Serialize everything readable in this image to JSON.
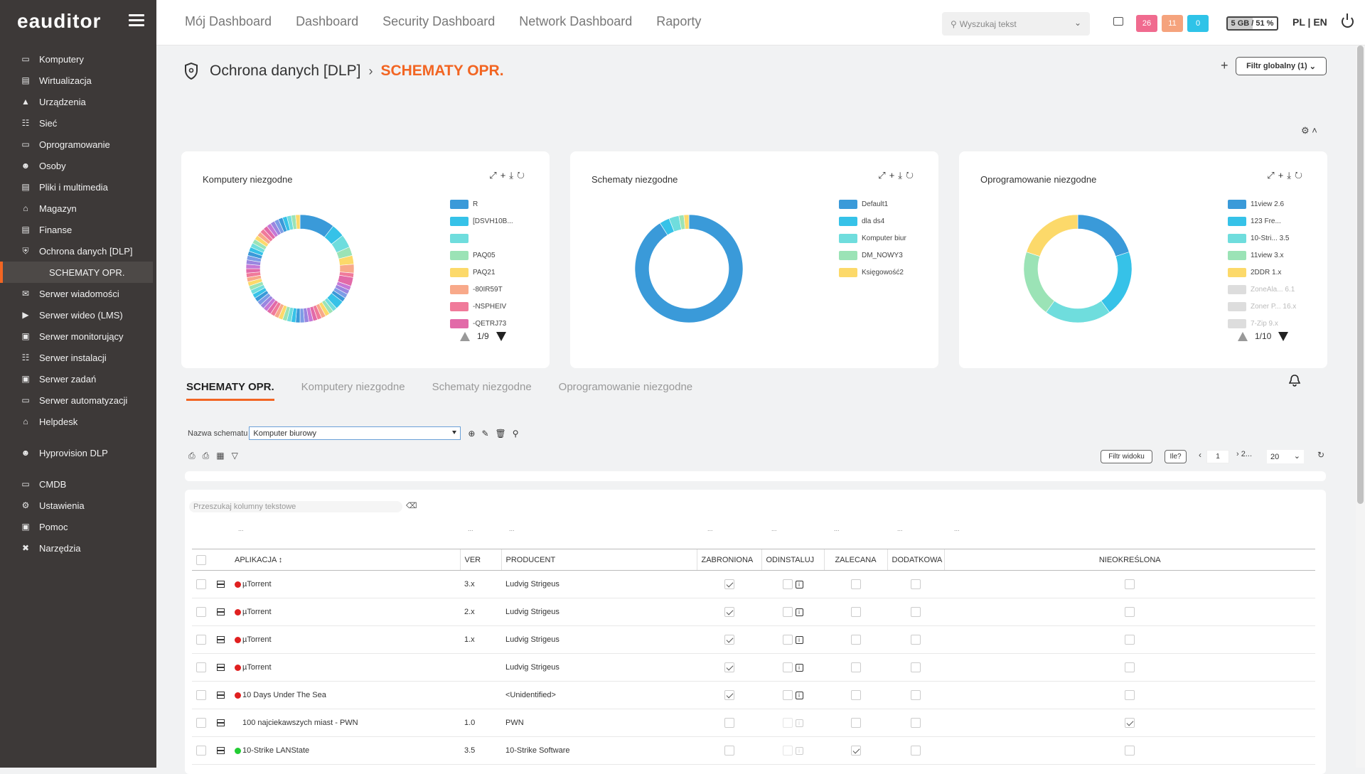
{
  "app": {
    "logo": "eauditor"
  },
  "sidebar": {
    "items": [
      {
        "label": "Komputery",
        "icon": "monitor-icon"
      },
      {
        "label": "Wirtualizacja",
        "icon": "server-stack-icon"
      },
      {
        "label": "Urządzenia",
        "icon": "devices-icon"
      },
      {
        "label": "Sieć",
        "icon": "network-icon"
      },
      {
        "label": "Oprogramowanie",
        "icon": "monitor-icon"
      },
      {
        "label": "Osoby",
        "icon": "people-icon"
      },
      {
        "label": "Pliki i multimedia",
        "icon": "files-icon"
      },
      {
        "label": "Magazyn",
        "icon": "warehouse-icon"
      },
      {
        "label": "Finanse",
        "icon": "finance-icon"
      },
      {
        "label": "Ochrona danych [DLP]",
        "icon": "shield-icon"
      },
      {
        "label": "SCHEMATY OPR.",
        "icon": ""
      },
      {
        "label": "Serwer wiadomości",
        "icon": "mail-icon"
      },
      {
        "label": "Serwer wideo (LMS)",
        "icon": "video-icon"
      },
      {
        "label": "Serwer monitorujący",
        "icon": "monitoring-icon"
      },
      {
        "label": "Serwer instalacji",
        "icon": "network-icon"
      },
      {
        "label": "Serwer zadań",
        "icon": "clipboard-icon"
      },
      {
        "label": "Serwer automatyzacji",
        "icon": "monitor-icon"
      },
      {
        "label": "Helpdesk",
        "icon": "helpdesk-icon"
      },
      {
        "label": "Hyprovision DLP",
        "icon": "user-key-icon"
      },
      {
        "label": "CMDB",
        "icon": "monitor-icon"
      },
      {
        "label": "Ustawienia",
        "icon": "gear-icon"
      },
      {
        "label": "Pomoc",
        "icon": "help-icon"
      },
      {
        "label": "Narzędzia",
        "icon": "tools-icon"
      }
    ]
  },
  "topnav": {
    "items": [
      "Mój Dashboard",
      "Dashboard",
      "Security Dashboard",
      "Network Dashboard",
      "Raporty"
    ]
  },
  "search": {
    "placeholder": "Wyszukaj tekst"
  },
  "badges": [
    {
      "value": "26",
      "color": "#f06b8f"
    },
    {
      "value": "11",
      "color": "#f5a37d"
    },
    {
      "value": "0",
      "color": "#2fc3e8"
    }
  ],
  "memory": {
    "label": "5 GB / 51 %",
    "fraction": 0.51
  },
  "lang": "PL | EN",
  "page": {
    "section": "Ochrona danych [DLP]",
    "current": "SCHEMATY OPR.",
    "filter_global": "Filtr globalny (1)"
  },
  "cards": [
    {
      "title": "Komputery niezgodne",
      "legend": [
        {
          "label": "R",
          "color": "#3a9ad9"
        },
        {
          "label": "[DSVH10B...",
          "color": "#36c2e8"
        },
        {
          "label": "",
          "color": "#6fdddd"
        },
        {
          "label": "PAQ05",
          "color": "#9be3b6"
        },
        {
          "label": "PAQ21",
          "color": "#fcd96a"
        },
        {
          "label": "-80IR59T",
          "color": "#f8a98a"
        },
        {
          "label": "-NSPHEIV",
          "color": "#f07a9a"
        },
        {
          "label": "-QETRJ73",
          "color": "#e26aa8"
        }
      ],
      "pager": "1/9",
      "chart_data": {
        "type": "pie",
        "values": [
          8,
          3,
          3,
          2,
          2,
          2,
          1,
          2,
          1,
          1,
          1,
          1,
          2,
          1,
          1,
          1,
          1,
          1,
          1,
          1,
          1,
          1,
          1,
          1,
          1,
          1,
          1,
          1,
          1,
          1,
          1,
          1,
          1,
          1,
          1,
          1,
          1,
          1,
          1,
          1,
          1,
          1,
          1,
          1,
          1,
          1,
          1,
          1,
          1,
          1,
          1,
          1,
          1,
          1,
          1,
          1,
          1,
          1,
          1,
          1
        ]
      }
    },
    {
      "title": "Schematy niezgodne",
      "legend": [
        {
          "label": "Default1",
          "color": "#3a9ad9"
        },
        {
          "label": "dla ds4",
          "color": "#36c2e8"
        },
        {
          "label": "Komputer biur",
          "color": "#6fdddd"
        },
        {
          "label": "DM_NOWY3",
          "color": "#9be3b6"
        },
        {
          "label": "Księgowość2",
          "color": "#fcd96a"
        }
      ],
      "pager": "",
      "chart_data": {
        "type": "pie",
        "values": [
          91,
          3,
          3,
          1.5,
          1.5
        ]
      }
    },
    {
      "title": "Oprogramowanie niezgodne",
      "legend": [
        {
          "label": "11view 2.6",
          "color": "#3a9ad9"
        },
        {
          "label": "123 Fre...",
          "color": "#36c2e8"
        },
        {
          "label": "10-Stri... 3.5",
          "color": "#6fdddd"
        },
        {
          "label": "11view 3.x",
          "color": "#9be3b6"
        },
        {
          "label": "2DDR 1.x",
          "color": "#fcd96a"
        },
        {
          "label": "ZoneAla... 6.1",
          "color": "#dddddd",
          "dim": true
        },
        {
          "label": "Zoner P... 16.x",
          "color": "#dddddd",
          "dim": true
        },
        {
          "label": "7-Zip 9.x",
          "color": "#dddddd",
          "dim": true
        }
      ],
      "pager": "1/10",
      "chart_data": {
        "type": "pie",
        "values": [
          20,
          20,
          20,
          20,
          20
        ]
      }
    }
  ],
  "tabs": [
    "SCHEMATY OPR.",
    "Komputery niezgodne",
    "Schematy niezgodne",
    "Oprogramowanie niezgodne"
  ],
  "schema": {
    "label": "Nazwa schematu",
    "value": "Komputer biurowy"
  },
  "toolbar": {
    "filter_view": "Filtr widoku",
    "how_many": "Ile?",
    "page": "1",
    "pages": "2...",
    "page_size": "20"
  },
  "table": {
    "search_placeholder": "Przeszukaj kolumny tekstowe",
    "headers": {
      "app": "APLIKACJA",
      "ver": "VER",
      "producer": "PRODUCENT",
      "forbidden": "ZABRONIONA",
      "uninstall": "ODINSTALUJ",
      "recommended": "ZALECANA",
      "additional": "DODATKOWA",
      "undefined": "NIEOKREŚLONA"
    },
    "rows": [
      {
        "app": "µTorrent",
        "ver": "3.x",
        "producer": "Ludvig Strigeus",
        "status": "red",
        "forbidden": true,
        "recommended": false,
        "undefined": false,
        "active": true
      },
      {
        "app": "µTorrent",
        "ver": "2.x",
        "producer": "Ludvig Strigeus",
        "status": "red",
        "forbidden": true,
        "recommended": false,
        "undefined": false,
        "active": true
      },
      {
        "app": "µTorrent",
        "ver": "1.x",
        "producer": "Ludvig Strigeus",
        "status": "red",
        "forbidden": true,
        "recommended": false,
        "undefined": false,
        "active": true
      },
      {
        "app": "µTorrent",
        "ver": "",
        "producer": "Ludvig Strigeus",
        "status": "red",
        "forbidden": true,
        "recommended": false,
        "undefined": false,
        "active": true
      },
      {
        "app": "10 Days Under The Sea",
        "ver": "",
        "producer": "<Unidentified>",
        "status": "red",
        "forbidden": true,
        "recommended": false,
        "undefined": false,
        "active": true
      },
      {
        "app": "100 najciekawszych miast - PWN",
        "ver": "1.0",
        "producer": "PWN",
        "status": "none",
        "forbidden": false,
        "recommended": false,
        "undefined": true,
        "active": false
      },
      {
        "app": "10-Strike LANState",
        "ver": "3.5",
        "producer": "10-Strike Software",
        "status": "green",
        "forbidden": false,
        "recommended": true,
        "undefined": false,
        "active": false
      }
    ]
  }
}
